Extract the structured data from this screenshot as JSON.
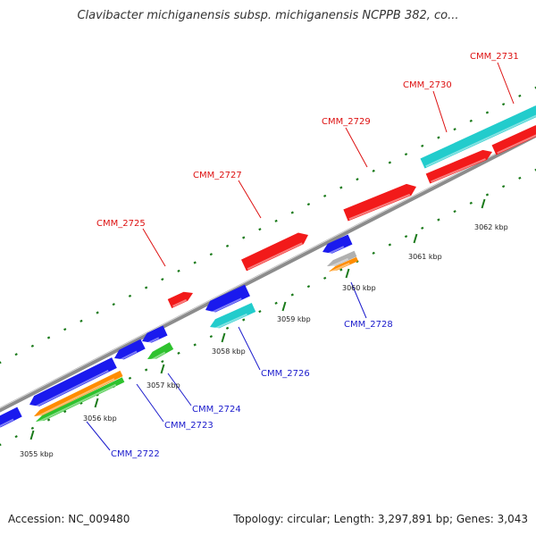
{
  "title": "Clavibacter michiganensis subsp. michiganensis NCPPB 382, co...",
  "footer": {
    "accession": "Accession: NC_009480",
    "stats": "Topology: circular; Length: 3,297,891 bp; Genes: 3,043"
  },
  "colors": {
    "forward_label": "#dd1111",
    "reverse_label": "#1a1acc",
    "backbone": "#8c8c8c",
    "tick": "#1a7a1a",
    "red": "#f21a1a",
    "blue": "#1a1aee",
    "cyan": "#22cccc",
    "orange": "#ff8c00",
    "green": "#2ec22e",
    "grey": "#b0b0b0"
  },
  "scale_labels": [
    "3055 kbp",
    "3056 kbp",
    "3057 kbp",
    "3058 kbp",
    "3059 kbp",
    "3060 kbp",
    "3061 kbp",
    "3062 kbp"
  ],
  "gene_labels": [
    {
      "text": "CMM_2725",
      "strand": "forward"
    },
    {
      "text": "CMM_2727",
      "strand": "forward"
    },
    {
      "text": "CMM_2729",
      "strand": "forward"
    },
    {
      "text": "CMM_2730",
      "strand": "forward"
    },
    {
      "text": "CMM_2731",
      "strand": "forward"
    },
    {
      "text": "CMM_2722",
      "strand": "reverse"
    },
    {
      "text": "CMM_2723",
      "strand": "reverse"
    },
    {
      "text": "CMM_2724",
      "strand": "reverse"
    },
    {
      "text": "CMM_2726",
      "strand": "reverse"
    },
    {
      "text": "CMM_2728",
      "strand": "reverse"
    }
  ]
}
